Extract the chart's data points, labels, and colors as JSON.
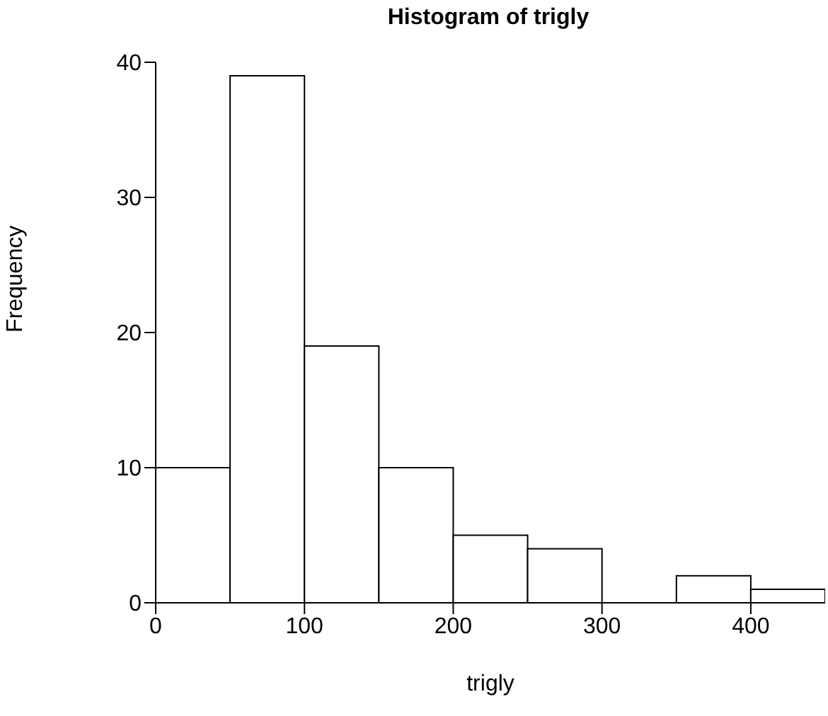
{
  "chart_data": {
    "type": "histogram",
    "title": "Histogram of trigly",
    "xlabel": "trigly",
    "ylabel": "Frequency",
    "bins": [
      0,
      50,
      100,
      150,
      200,
      250,
      300,
      350,
      400,
      450
    ],
    "values": [
      10,
      39,
      19,
      10,
      5,
      4,
      0,
      2,
      1
    ],
    "color": "#ffffff",
    "xlim": [
      0,
      450
    ],
    "xticks": [
      0,
      100,
      200,
      300,
      400
    ],
    "ylim": [
      0,
      40
    ],
    "yticks": [
      0,
      10,
      20,
      30,
      40
    ],
    "grid": false,
    "legend": false
  }
}
